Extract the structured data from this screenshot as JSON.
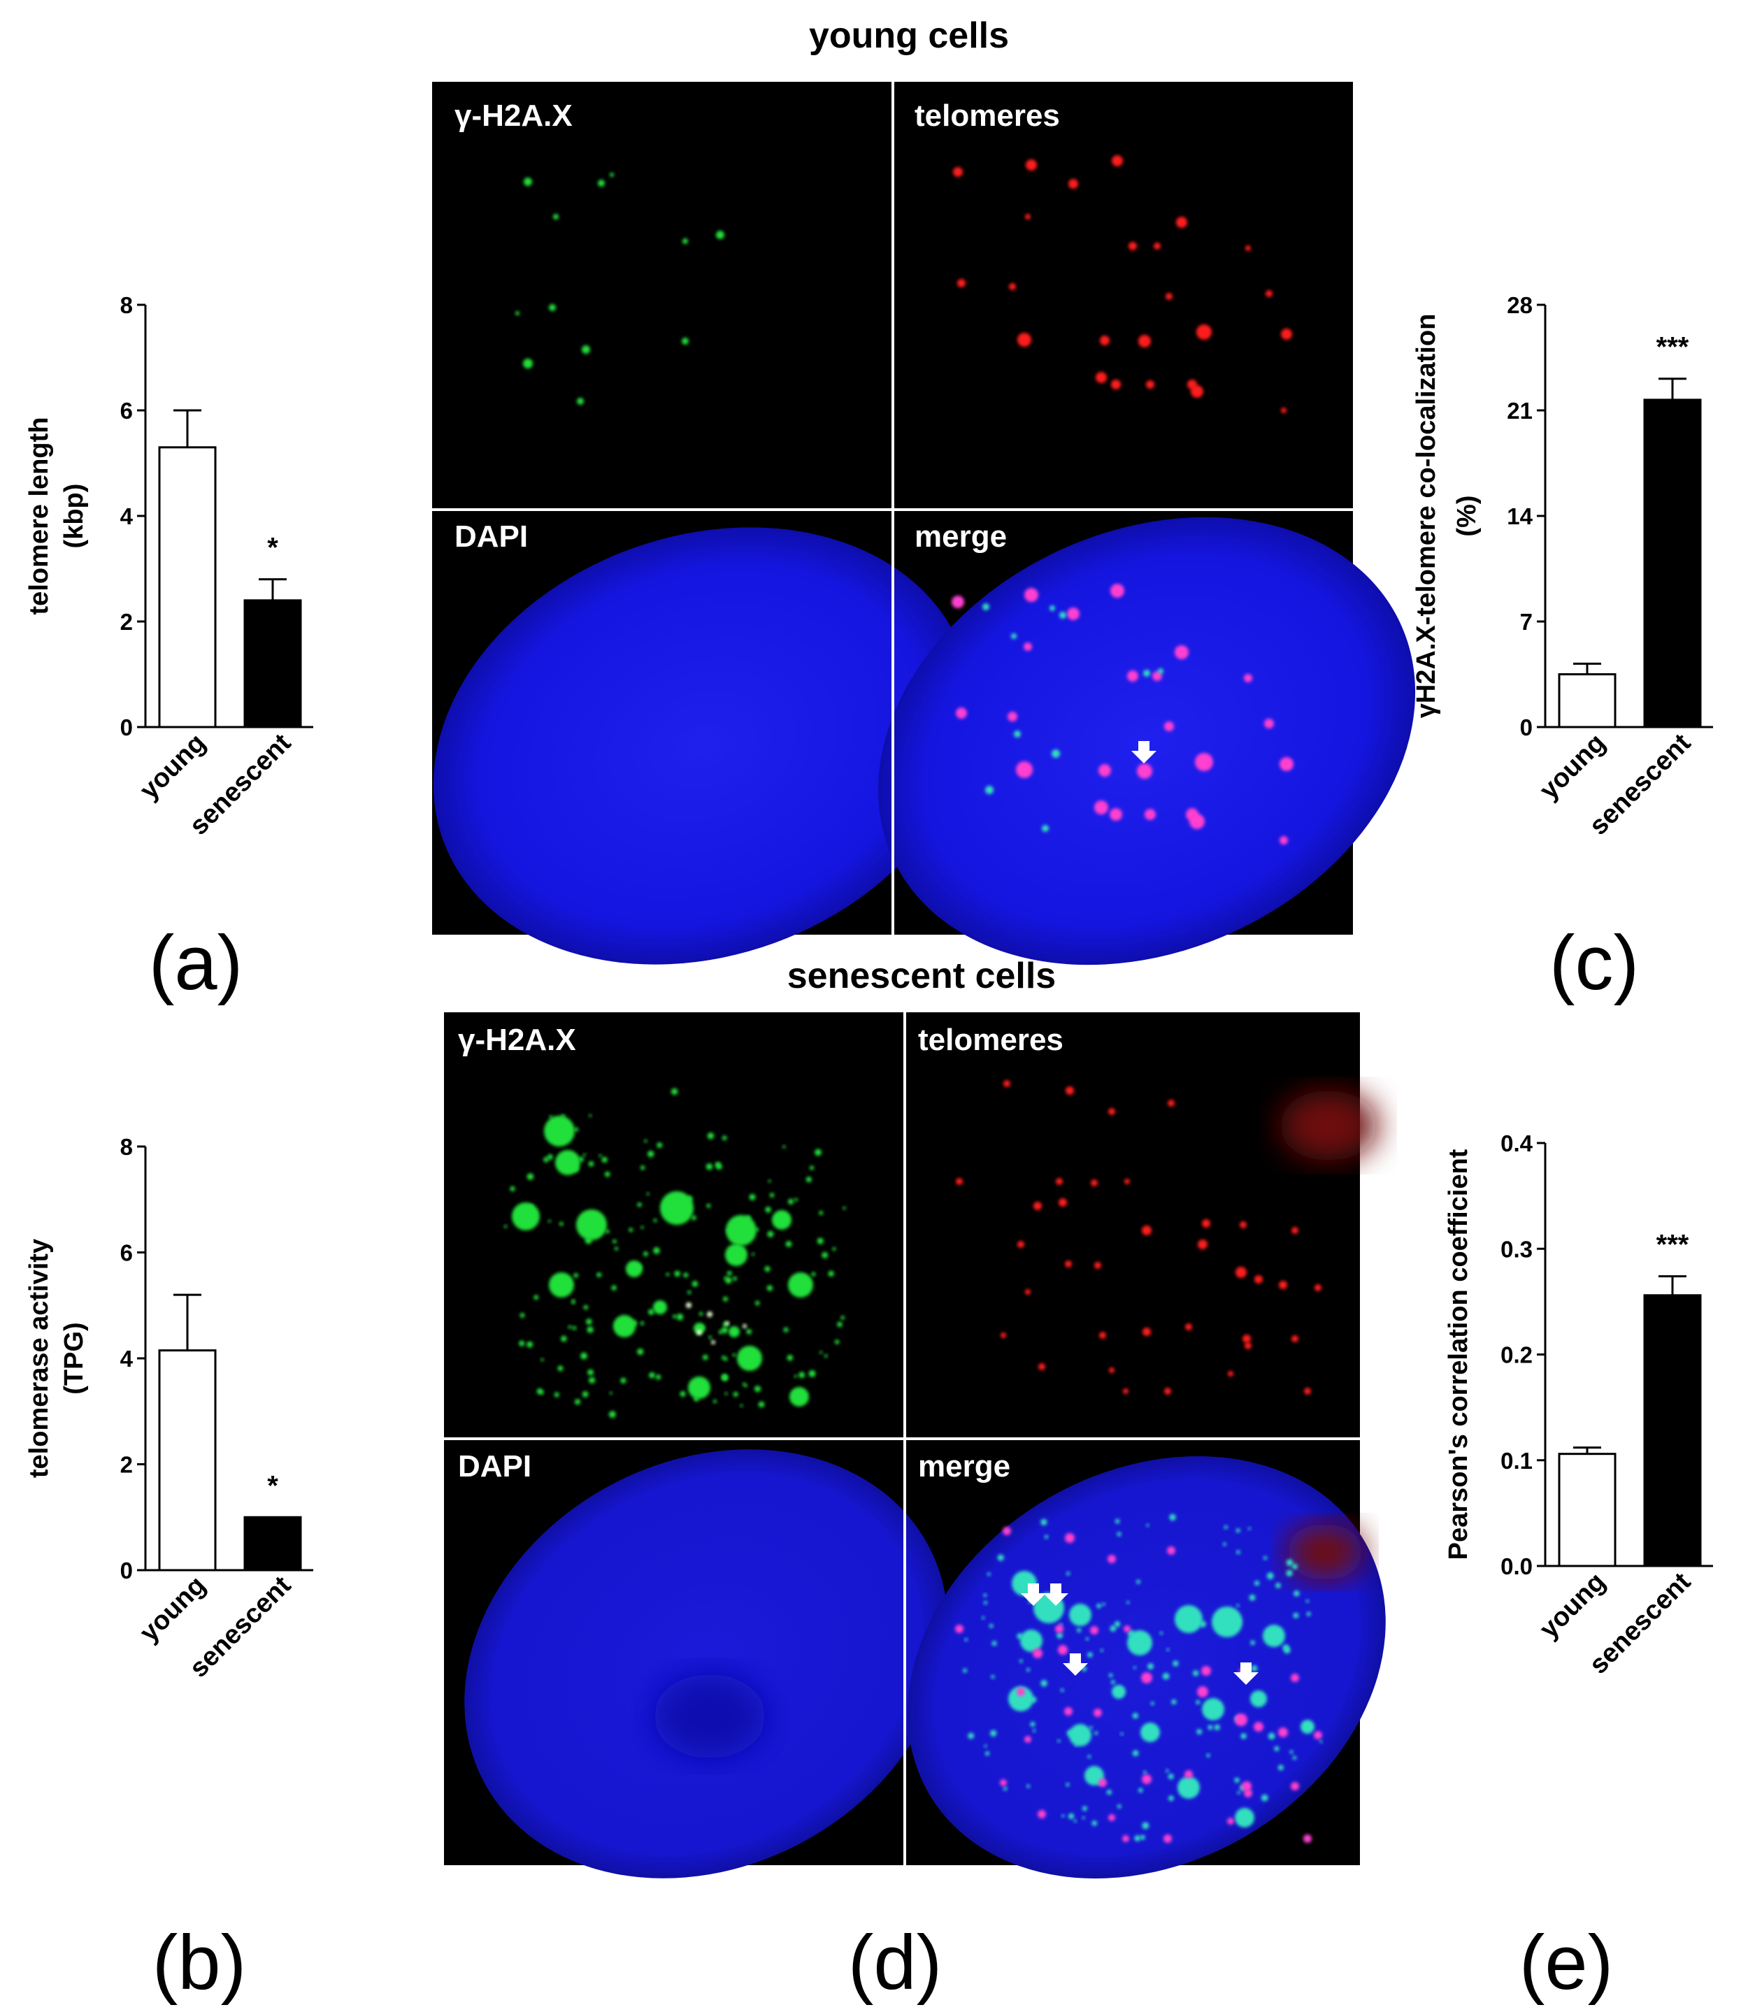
{
  "colors": {
    "young_bar": "#ffffff",
    "senescent_bar": "#000000",
    "gamma_h2ax": "#22e03a",
    "telomeres": "#ff1a1a",
    "dapi": "#1a1af0",
    "merge_spot": "#ff40d0",
    "colocalized_spot": "#30e0c0"
  },
  "panel_labels": {
    "a": "(a)",
    "b": "(b)",
    "c": "(c)",
    "d": "(d)",
    "e": "(e)"
  },
  "micrographs": {
    "young_title": "young cells",
    "senescent_title": "senescent cells",
    "channels": {
      "gamma": "γ-H2A.X",
      "telomeres": "telomeres",
      "dapi": "DAPI",
      "merge": "merge"
    }
  },
  "chart_data": [
    {
      "id": "a",
      "type": "bar",
      "categories": [
        "young",
        "senescent"
      ],
      "values": [
        5.3,
        2.4
      ],
      "errors": [
        0.7,
        0.4
      ],
      "significance": [
        "",
        "*"
      ],
      "ylabel": [
        "telomere length",
        "(kbp)"
      ],
      "ylim": [
        0,
        8
      ],
      "yticks": [
        "0",
        "2",
        "4",
        "6",
        "8"
      ]
    },
    {
      "id": "b",
      "type": "bar",
      "categories": [
        "young",
        "senescent"
      ],
      "values": [
        4.15,
        1.0
      ],
      "errors": [
        1.05,
        0.0
      ],
      "significance": [
        "",
        "*"
      ],
      "ylabel": [
        "telomerase activity",
        "(TPG)"
      ],
      "ylim": [
        0,
        8
      ],
      "yticks": [
        "0",
        "2",
        "4",
        "6",
        "8"
      ]
    },
    {
      "id": "c",
      "type": "bar",
      "categories": [
        "young",
        "senescent"
      ],
      "values": [
        3.5,
        21.7
      ],
      "errors": [
        0.7,
        1.4
      ],
      "significance": [
        "",
        "***"
      ],
      "ylabel": [
        "γH2A.X-telomere co-localization",
        "(%)"
      ],
      "ylim": [
        0,
        28
      ],
      "yticks": [
        "0",
        "7",
        "14",
        "21",
        "28"
      ]
    },
    {
      "id": "e",
      "type": "bar",
      "categories": [
        "young",
        "senescent"
      ],
      "values": [
        0.106,
        0.256
      ],
      "errors": [
        0.006,
        0.018
      ],
      "significance": [
        "",
        "***"
      ],
      "ylabel": [
        "Pearson's correlation coefficient"
      ],
      "ylim": [
        0,
        0.4
      ],
      "yticks": [
        "0.0",
        "0.1",
        "0.2",
        "0.3",
        "0.4"
      ]
    }
  ]
}
